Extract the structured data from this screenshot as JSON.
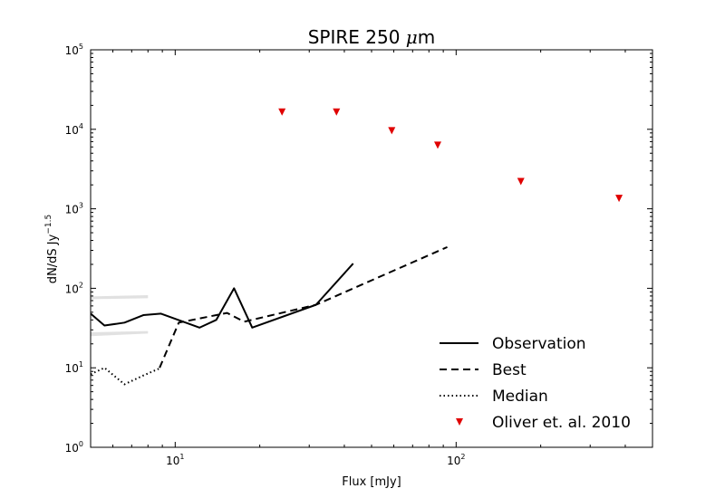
{
  "chart_data": {
    "type": "line",
    "title": "SPIRE 250 μm",
    "xlabel": "Flux [mJy]",
    "ylabel": "dN/dS Jy",
    "ylabel_exponent": "−1.5",
    "xscale": "log",
    "yscale": "log",
    "xlim": [
      5.0,
      500.0
    ],
    "ylim": [
      1,
      100000
    ],
    "grid": false,
    "legend_position": "bottom-right",
    "x_ticks": [
      {
        "value": 10,
        "base": "10",
        "exp": "1"
      },
      {
        "value": 100,
        "base": "10",
        "exp": "2"
      }
    ],
    "y_ticks": [
      {
        "value": 1,
        "base": "10",
        "exp": "0"
      },
      {
        "value": 10,
        "base": "10",
        "exp": "1"
      },
      {
        "value": 100,
        "base": "10",
        "exp": "2"
      },
      {
        "value": 1000,
        "base": "10",
        "exp": "3"
      },
      {
        "value": 10000,
        "base": "10",
        "exp": "4"
      },
      {
        "value": 100000,
        "base": "10",
        "exp": "5"
      }
    ],
    "series": [
      {
        "name": "Observation",
        "style": "solid",
        "color": "#000000",
        "x": [
          5.0,
          5.6,
          6.6,
          7.7,
          8.9,
          12.2,
          14.0,
          16.2,
          18.8,
          31.7,
          43.0
        ],
        "y": [
          48,
          34,
          37,
          46,
          48,
          32,
          40,
          100,
          32,
          62,
          205
        ]
      },
      {
        "name": "Best",
        "style": "dashed",
        "color": "#000000",
        "x": [
          8.8,
          10.3,
          15.3,
          17.6,
          31.7,
          93.0
        ],
        "y": [
          10,
          37,
          49,
          38,
          62,
          330
        ]
      },
      {
        "name": "Median",
        "style": "dotted",
        "color": "#000000",
        "x": [
          5.0,
          5.6,
          6.6,
          7.7,
          8.9
        ],
        "y": [
          8.3,
          10,
          6.2,
          8,
          10
        ]
      },
      {
        "name": "Oliver et. al. 2010",
        "style": "marker",
        "color": "#e00000",
        "x": [
          24,
          37.5,
          59,
          86,
          170,
          380
        ],
        "y": [
          16500,
          16500,
          9600,
          6300,
          2200,
          1350
        ]
      }
    ],
    "shaded_bands": [
      {
        "x": [
          5.0,
          8.0
        ],
        "y_low": [
          73,
          75
        ],
        "y_high": [
          79,
          82
        ]
      },
      {
        "x": [
          5.0,
          8.0
        ],
        "y_low": [
          25,
          27
        ],
        "y_high": [
          28,
          29
        ]
      }
    ]
  }
}
